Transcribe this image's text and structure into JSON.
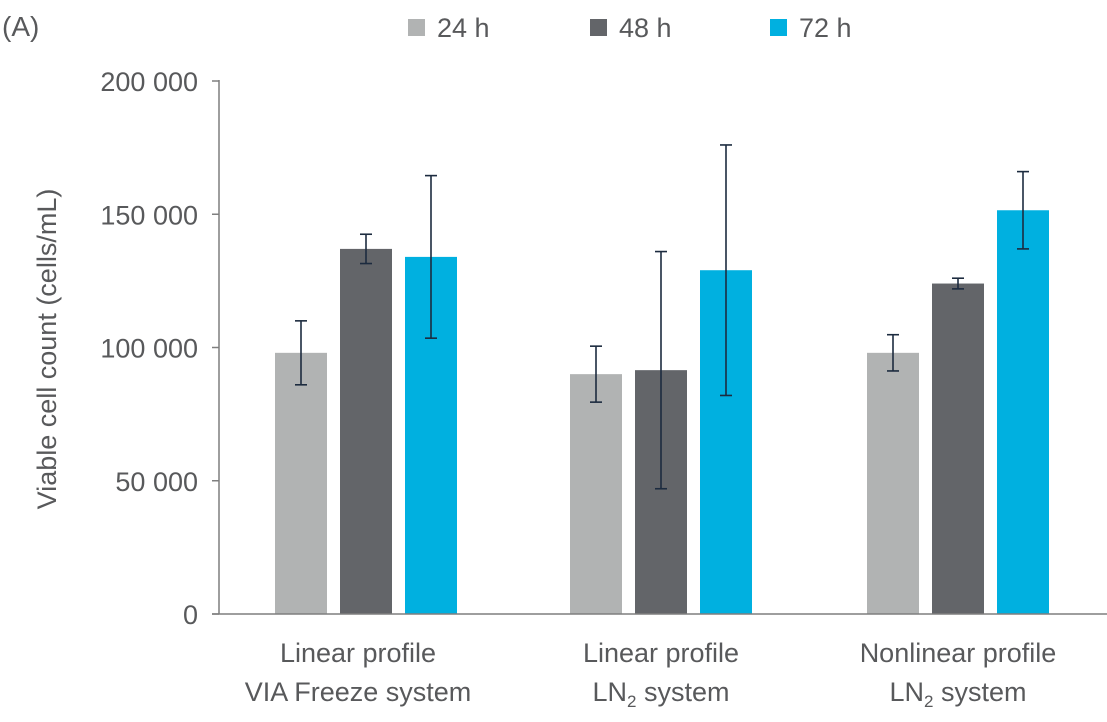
{
  "panel_label": "(A)",
  "chart_data": {
    "type": "bar",
    "title": "",
    "xlabel": "",
    "ylabel": "Viable cell count (cells/mL)",
    "ylim": [
      0,
      200000
    ],
    "yticks": [
      {
        "value": 0,
        "label": "0"
      },
      {
        "value": 50000,
        "label": "50 000"
      },
      {
        "value": 100000,
        "label": "100 000"
      },
      {
        "value": 150000,
        "label": "150 000"
      },
      {
        "value": 200000,
        "label": "200 000"
      }
    ],
    "categories": [
      {
        "line1": "Linear profile",
        "line2_main": "VIA Freeze system",
        "line2_sub": "",
        "line2_tail": ""
      },
      {
        "line1": "Linear profile",
        "line2_main": "LN",
        "line2_sub": "2",
        "line2_tail": " system"
      },
      {
        "line1": "Nonlinear profile",
        "line2_main": "LN",
        "line2_sub": "2",
        "line2_tail": " system"
      }
    ],
    "series": [
      {
        "name": "24 h",
        "color": "#b1b3b3",
        "values": [
          98000,
          90000,
          98000
        ],
        "error": [
          12000,
          10500,
          6800
        ]
      },
      {
        "name": "48 h",
        "color": "#636569",
        "values": [
          137000,
          91500,
          124000
        ],
        "error": [
          5500,
          44500,
          2000
        ]
      },
      {
        "name": "72 h",
        "color": "#00b0e0",
        "values": [
          134000,
          129000,
          151500
        ],
        "error": [
          30500,
          47000,
          14500
        ]
      }
    ],
    "legend_position": "top-center",
    "grid": false,
    "error_bar_color": "#1c2b3f"
  }
}
